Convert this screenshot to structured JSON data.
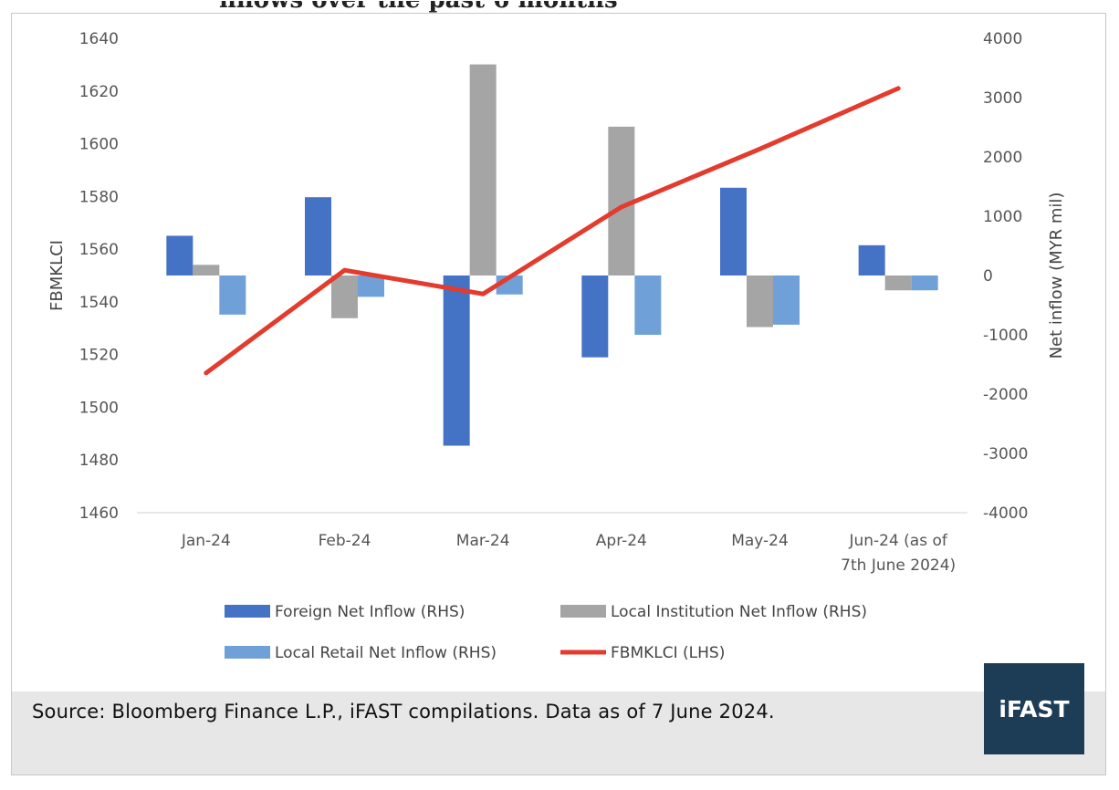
{
  "chart_data": {
    "type": "bar",
    "categories": [
      "Jan-24",
      "Feb-24",
      "Mar-24",
      "Apr-24",
      "May-24",
      "Jun-24 (as of 7th June 2024)"
    ],
    "category_lines": [
      [
        "Jan-24"
      ],
      [
        "Feb-24"
      ],
      [
        "Mar-24"
      ],
      [
        "Apr-24"
      ],
      [
        "May-24"
      ],
      [
        "Jun-24 (as of",
        "7th June 2024)"
      ]
    ],
    "series": [
      {
        "name": "Foreign Net Inflow (RHS)",
        "type": "bar",
        "axis": "right",
        "color": "#4472c4",
        "values": [
          670,
          1320,
          -2870,
          -1380,
          1480,
          510
        ]
      },
      {
        "name": "Local Institution Net Inflow (RHS)",
        "type": "bar",
        "axis": "right",
        "color": "#a5a5a5",
        "values": [
          180,
          -720,
          3560,
          2510,
          -870,
          -250
        ]
      },
      {
        "name": "Local Retail Net Inflow (RHS)",
        "type": "bar",
        "axis": "right",
        "color": "#6fa1d8",
        "values": [
          -660,
          -360,
          -320,
          -1000,
          -830,
          -250
        ]
      },
      {
        "name": "FBMKLCI (LHS)",
        "type": "line",
        "axis": "left",
        "color": "#e33b2e",
        "values": [
          1513,
          1552,
          1543,
          1576,
          1598,
          1621
        ]
      }
    ],
    "ylabel_left": "FBMKLCI",
    "ylabel_right": "Net inflow (MYR mil)",
    "ylim_left": [
      1460,
      1640
    ],
    "ylim_right": [
      -4000,
      4000
    ],
    "yticks_left": [
      1640,
      1620,
      1600,
      1580,
      1560,
      1540,
      1520,
      1500,
      1480,
      1460
    ],
    "yticks_right": [
      4000,
      3000,
      2000,
      1000,
      0,
      -1000,
      -2000,
      -3000,
      -4000
    ],
    "grid": false,
    "legend": "bottom"
  },
  "footer": {
    "source": "Source: Bloomberg Finance L.P., iFAST compilations. Data as of 7 June 2024."
  },
  "logo": {
    "text": "iFAST"
  },
  "header": {
    "partial_title": "nflows over the past 6 months"
  }
}
